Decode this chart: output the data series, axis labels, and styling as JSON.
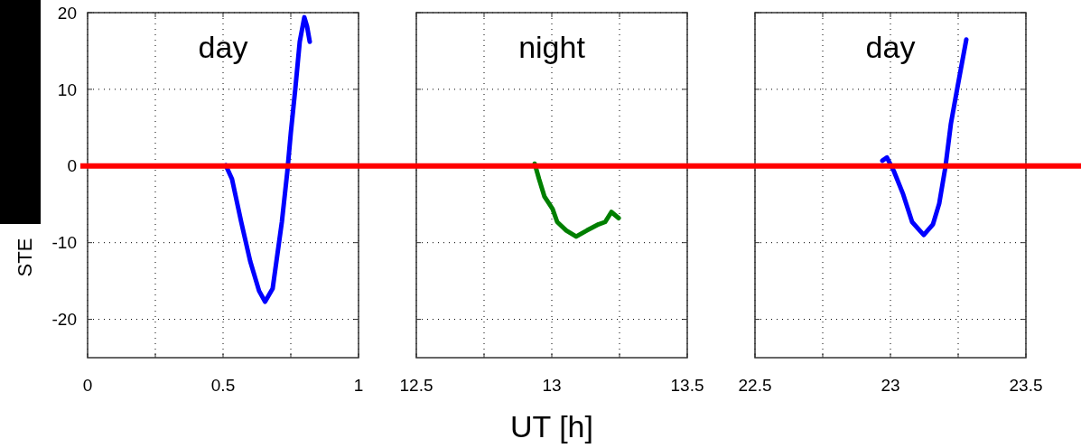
{
  "chart_data": [
    {
      "type": "line",
      "title": "day",
      "ylabel": "STE",
      "xlim": [
        0,
        1
      ],
      "xticks": [
        0,
        {
          "value": 0.25,
          "label": null
        },
        0.5,
        {
          "value": 0.75,
          "label": null
        },
        1
      ],
      "ylim": [
        -25,
        20
      ],
      "yticks": [
        -20,
        -10,
        0,
        10,
        20
      ],
      "grid": true,
      "marker": "none",
      "series": [
        {
          "color": "#0000ff",
          "x": [
            0.51,
            0.533,
            0.567,
            0.6,
            0.633,
            0.655,
            0.683,
            0.717,
            0.737,
            0.75,
            0.767,
            0.783,
            0.8,
            0.81,
            0.82
          ],
          "values": [
            0.1,
            -1.7,
            -7.3,
            -12.4,
            -16.3,
            -17.7,
            -16,
            -7.3,
            -0.8,
            4.3,
            10.2,
            16.2,
            19.4,
            18.2,
            16.2
          ]
        }
      ],
      "ref_lines": [
        {
          "axis": "y",
          "value": 0,
          "color": "#ff0000"
        }
      ]
    },
    {
      "type": "line",
      "title": "night",
      "xlabel": "UT [h]",
      "xlim": [
        12.5,
        13.5
      ],
      "xticks": [
        12.5,
        {
          "value": 12.75,
          "label": null
        },
        13,
        {
          "value": 13.25,
          "label": null
        },
        13.5
      ],
      "ylim": [
        -25,
        20
      ],
      "yticks": [
        {
          "value": -20,
          "label": null
        },
        {
          "value": -10,
          "label": null
        },
        {
          "value": 0,
          "label": null
        },
        {
          "value": 10,
          "label": null
        },
        {
          "value": 20,
          "label": null
        }
      ],
      "grid": true,
      "marker": "none",
      "tick_labels": "x",
      "series": [
        {
          "color": "#007f00",
          "x": [
            12.937,
            12.953,
            12.973,
            13.003,
            13.02,
            13.053,
            13.09,
            13.13,
            13.173,
            13.197,
            13.22,
            13.247
          ],
          "values": [
            0.3,
            -1.7,
            -4,
            -5.6,
            -7.3,
            -8.4,
            -9.2,
            -8.4,
            -7.6,
            -7.3,
            -6,
            -6.8
          ]
        }
      ],
      "ref_lines": [
        {
          "axis": "y",
          "value": 0,
          "color": "#ff0000"
        }
      ]
    },
    {
      "type": "line",
      "title": "day",
      "xlim": [
        22.5,
        23.5
      ],
      "xticks": [
        22.5,
        {
          "value": 22.75,
          "label": null
        },
        23,
        {
          "value": 23.25,
          "label": null
        },
        23.5
      ],
      "ylim": [
        -25,
        20
      ],
      "yticks": [
        {
          "value": -20,
          "label": null
        },
        {
          "value": -10,
          "label": null
        },
        {
          "value": 0,
          "label": null
        },
        {
          "value": 10,
          "label": null
        },
        {
          "value": 20,
          "label": null
        }
      ],
      "grid": true,
      "marker": "none",
      "tick_labels": "x",
      "series": [
        {
          "color": "#0000ff",
          "x": [
            22.97,
            22.987,
            23.013,
            23.047,
            23.08,
            23.123,
            23.157,
            23.18,
            23.203,
            23.223,
            23.247,
            23.28
          ],
          "values": [
            0.7,
            1.1,
            -0.7,
            -3.7,
            -7.3,
            -9,
            -7.6,
            -4.9,
            -0.1,
            5.5,
            10.2,
            16.5
          ]
        }
      ],
      "ref_lines": [
        {
          "axis": "y",
          "value": 0,
          "color": "#ff0000"
        }
      ]
    }
  ]
}
